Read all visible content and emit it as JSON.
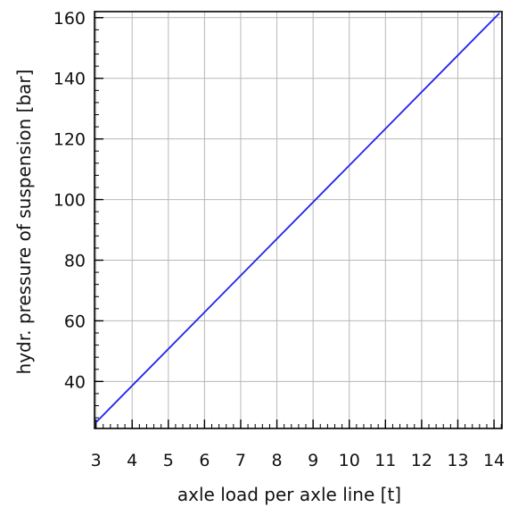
{
  "chart_data": {
    "type": "line",
    "title": "",
    "xlabel": "axle load per axle line [t]",
    "ylabel": "hydr. pressure of suspension [bar]",
    "xlim": [
      2.96,
      14.22
    ],
    "ylim": [
      24.5,
      162
    ],
    "x_ticks": [
      3,
      4,
      5,
      6,
      7,
      8,
      9,
      10,
      11,
      12,
      13,
      14
    ],
    "y_ticks": [
      40,
      60,
      80,
      100,
      120,
      140,
      160
    ],
    "grid": true,
    "legend": "none",
    "series": [
      {
        "color": "#2222ee",
        "x": [
          3,
          14.15
        ],
        "y": [
          26.5,
          161.5
        ]
      }
    ]
  }
}
